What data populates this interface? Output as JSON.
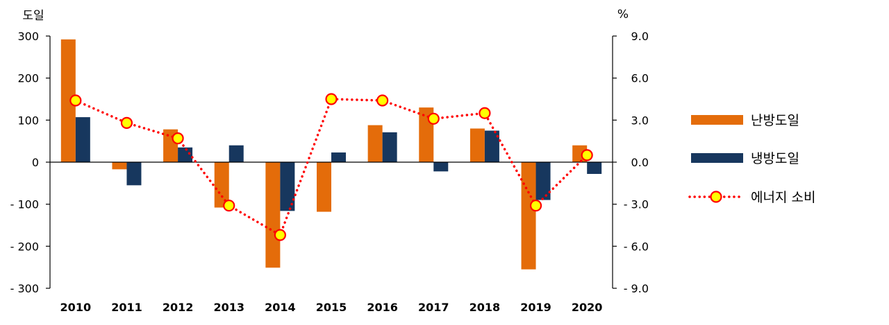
{
  "chart_data": {
    "type": "bar",
    "categories": [
      "2010",
      "2011",
      "2012",
      "2013",
      "2014",
      "2015",
      "2016",
      "2017",
      "2018",
      "2019",
      "2020"
    ],
    "y_left": {
      "unit": "도일",
      "ylim": [
        -300,
        300
      ],
      "ticks": [
        300,
        200,
        100,
        0,
        -100,
        -200,
        -300
      ],
      "tick_labels": [
        "300",
        "200",
        "100",
        "0",
        "- 100",
        "- 200",
        "- 300"
      ]
    },
    "y_right": {
      "unit": "%",
      "ylim": [
        -9.0,
        9.0
      ],
      "ticks": [
        9.0,
        6.0,
        3.0,
        0.0,
        -3.0,
        -6.0,
        -9.0
      ],
      "tick_labels": [
        "9.0",
        "6.0",
        "3.0",
        "0.0",
        "- 3.0",
        "- 6.0",
        "- 9.0"
      ]
    },
    "series": [
      {
        "name": "난방도일",
        "type": "bar",
        "axis": "left",
        "color": "#E46C0A",
        "values": [
          292,
          -17,
          78,
          -108,
          -251,
          -118,
          88,
          130,
          80,
          -255,
          40
        ]
      },
      {
        "name": "냉방도일",
        "type": "bar",
        "axis": "left",
        "color": "#17375E",
        "values": [
          107,
          -55,
          35,
          40,
          -116,
          23,
          71,
          -22,
          75,
          -90,
          -28
        ]
      },
      {
        "name": "에너지 소비",
        "type": "line",
        "axis": "right",
        "line_color": "#FF0000",
        "marker_fill": "#FFFF00",
        "marker_stroke": "#FF0000",
        "line_style": "dotted",
        "values": [
          4.4,
          2.8,
          1.7,
          -3.1,
          -5.2,
          4.5,
          4.4,
          3.1,
          3.5,
          -3.1,
          0.5
        ]
      }
    ],
    "grid": false,
    "legend_position": "right"
  }
}
